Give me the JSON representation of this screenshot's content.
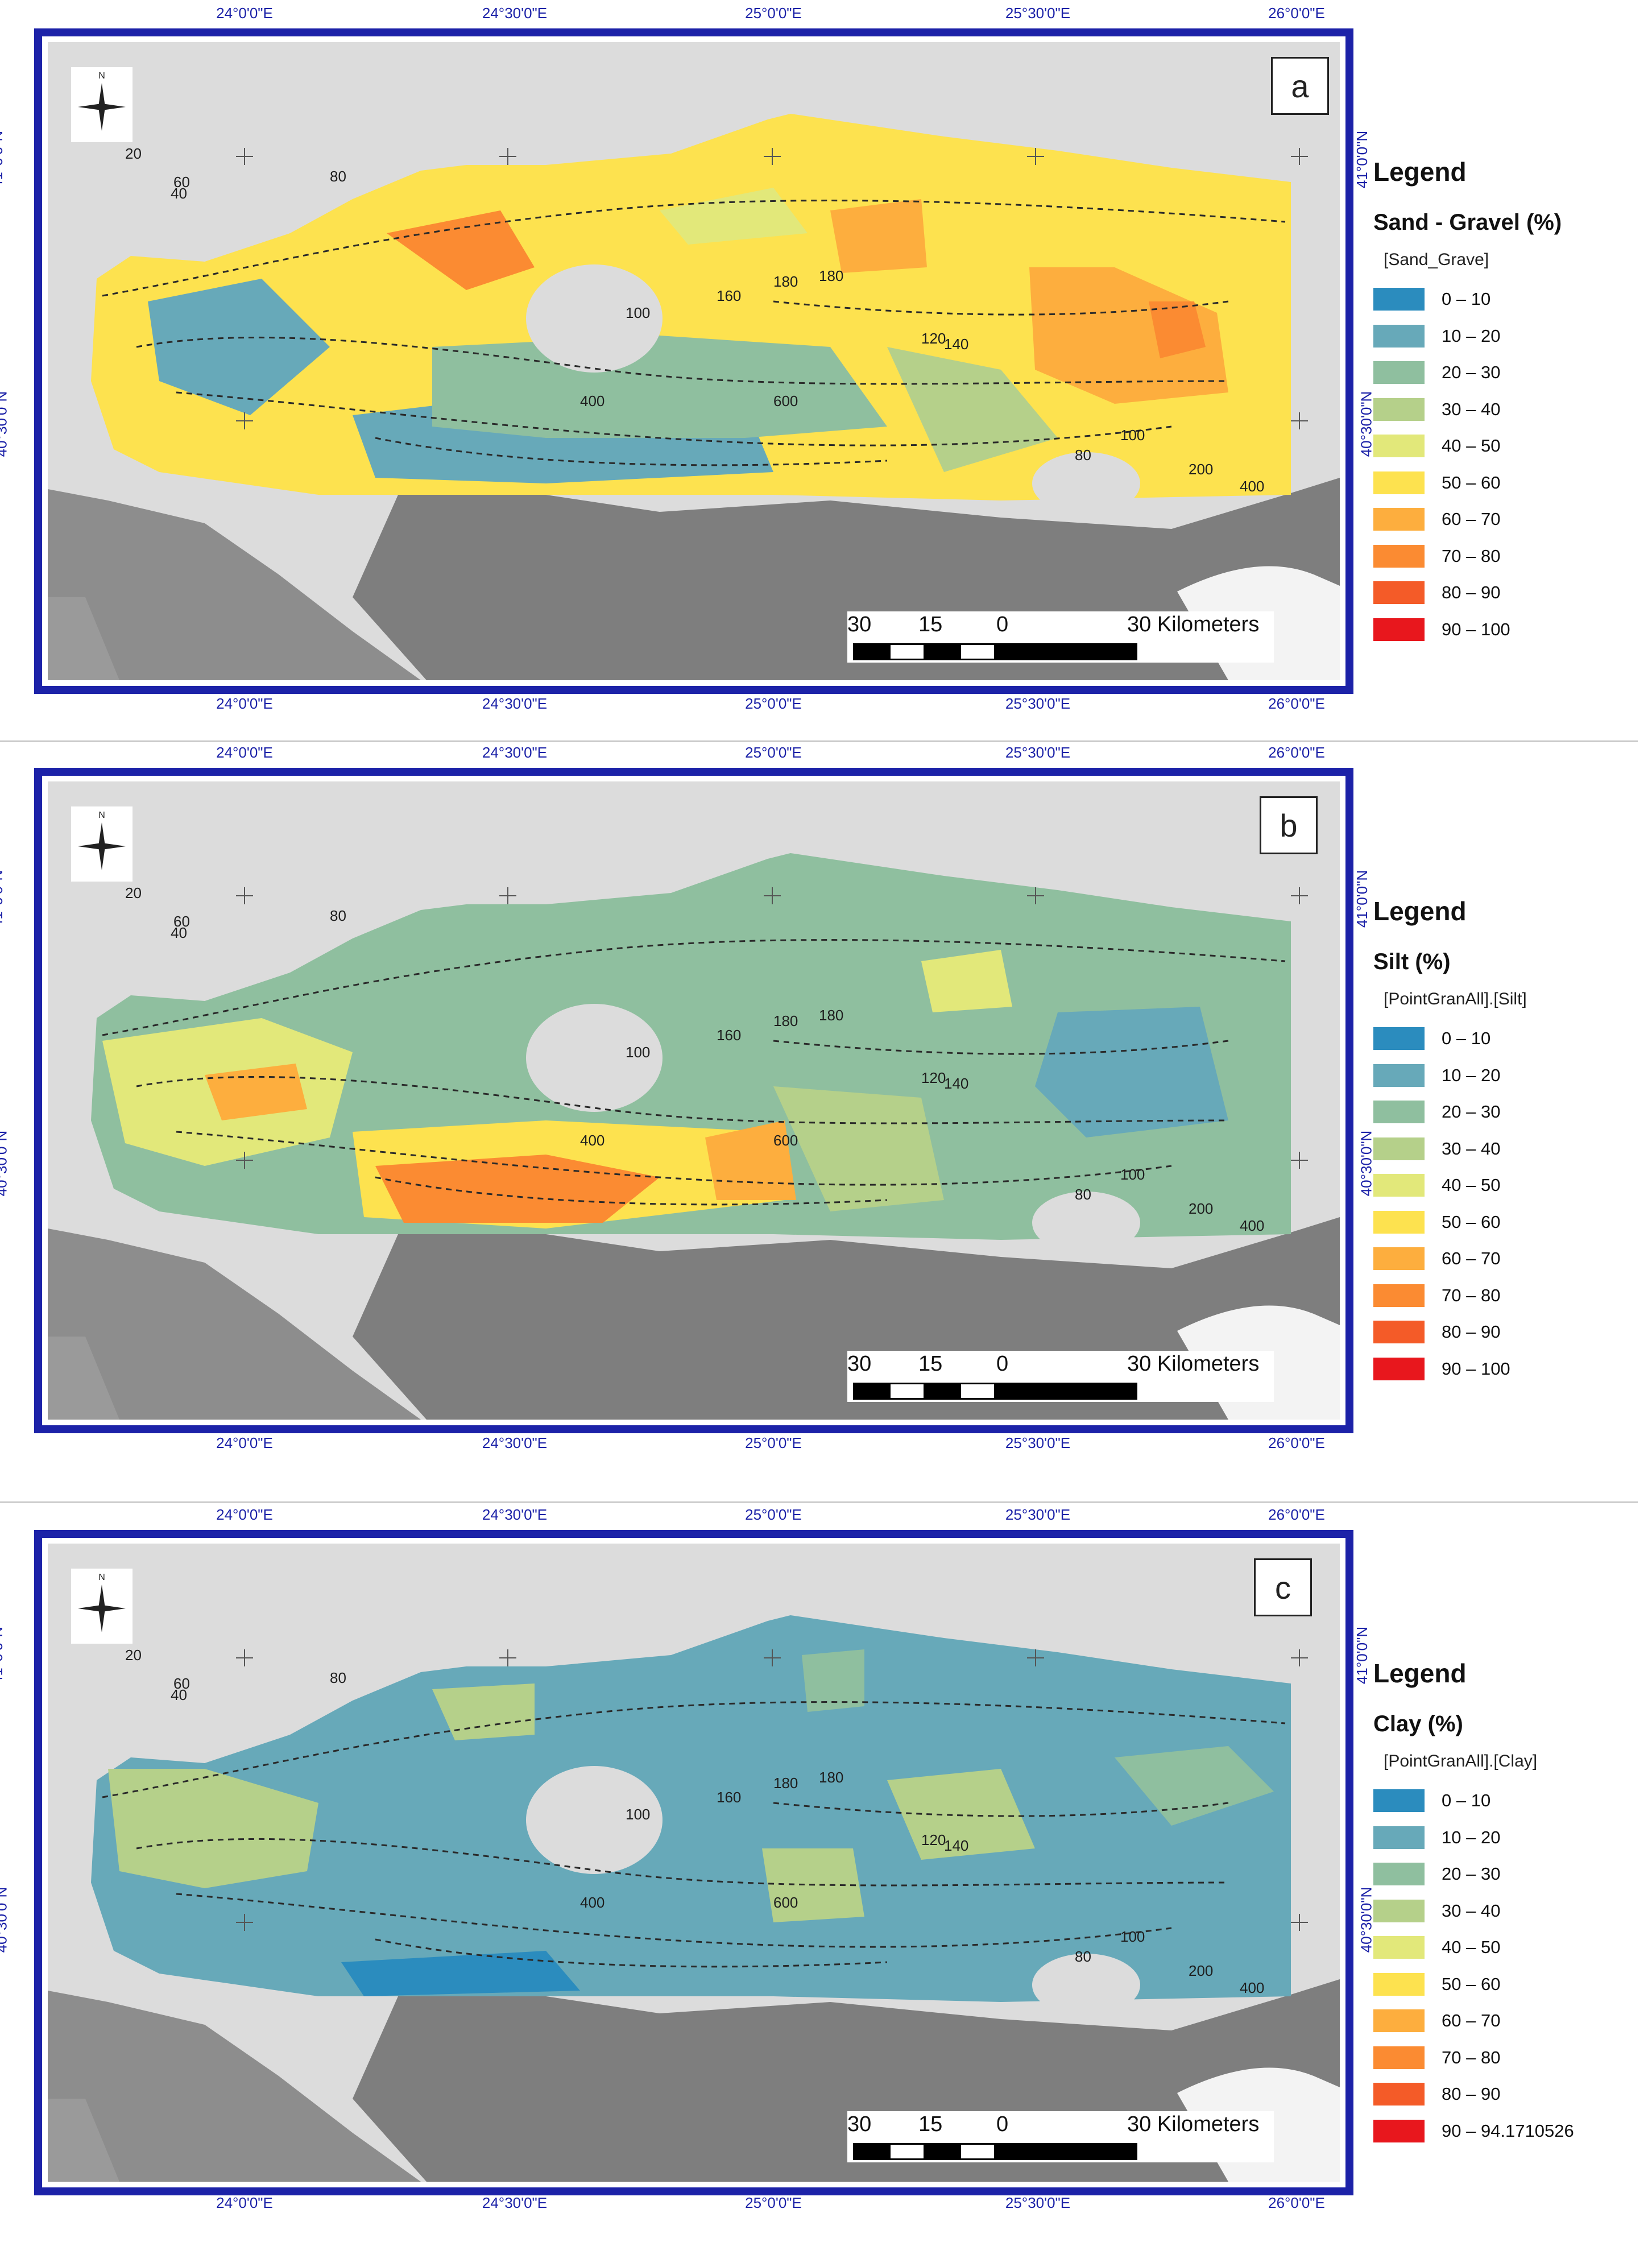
{
  "map_labels": {
    "longitudes": [
      "24°0'0\"E",
      "24°30'0\"E",
      "25°0'0\"E",
      "25°30'0\"E",
      "26°0'0\"E"
    ],
    "latitudes": [
      "41°0'0\"N",
      "40°30'0\"N"
    ],
    "north_letter": "N",
    "scale_ticks": [
      "30",
      "15",
      "0"
    ],
    "scale_end": "30 Kilometers",
    "contour_values": [
      "20",
      "40",
      "60",
      "80",
      "100",
      "120",
      "140",
      "160",
      "180",
      "200",
      "400",
      "600"
    ]
  },
  "colors": {
    "land": "#8a8a8a",
    "sea_background": "#dcdcdc",
    "frame": "#1c22a8",
    "contour": "#2a2a2a",
    "class_colors": [
      "#2b8cbe",
      "#67a9b9",
      "#8fbf9f",
      "#b5d08a",
      "#e2e87a",
      "#fde24f",
      "#fdae3e",
      "#fb8b32",
      "#f45b28",
      "#e8171d"
    ]
  },
  "legend_header": "Legend",
  "panels": [
    {
      "label": "a",
      "variable": "Sand - Gravel (%)",
      "field": "[Sand_Grave]",
      "classes": [
        "0 – 10",
        "10 – 20",
        "20 – 30",
        "30 – 40",
        "40 – 50",
        "50 – 60",
        "60 – 70",
        "70 – 80",
        "80 – 90",
        "90 – 100"
      ]
    },
    {
      "label": "b",
      "variable": "Silt (%)",
      "field": "[PointGranAll].[Silt]",
      "classes": [
        "0 – 10",
        "10 – 20",
        "20 – 30",
        "30 – 40",
        "40 – 50",
        "50 – 60",
        "60 – 70",
        "70 – 80",
        "80 – 90",
        "90 – 100"
      ]
    },
    {
      "label": "c",
      "variable": "Clay (%)",
      "field": "[PointGranAll].[Clay]",
      "classes": [
        "0 – 10",
        "10 – 20",
        "20 – 30",
        "30 – 40",
        "40 – 50",
        "50 – 60",
        "60 – 70",
        "70 – 80",
        "80 – 90",
        "90 – 94.1710526"
      ]
    }
  ]
}
